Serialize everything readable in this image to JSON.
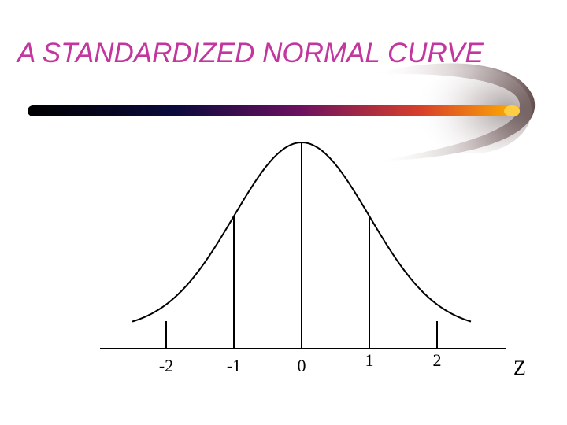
{
  "slide": {
    "title": "A STANDARDIZED NORMAL CURVE"
  },
  "colors": {
    "title": "#c2369e",
    "bar_start": "#000000",
    "bar_mid1": "#0b0a3c",
    "bar_mid2": "#6a1060",
    "bar_mid3": "#d8402a",
    "bar_end": "#ffb000",
    "curve": "#000000"
  },
  "decor": {
    "bar_icon": "gradient-bar-icon",
    "swoosh_icon": "comet-swoosh-icon"
  },
  "chart_data": {
    "type": "line",
    "x_range": [
      -2.5,
      2.5
    ],
    "ticks": [
      {
        "value": -2,
        "label": "-2",
        "marker": "short"
      },
      {
        "value": -1,
        "label": "-1",
        "marker": "long"
      },
      {
        "value": 0,
        "label": "0",
        "marker": "long"
      },
      {
        "value": 1,
        "label": "1",
        "marker": "long"
      },
      {
        "value": 2,
        "label": "2",
        "marker": "short"
      }
    ],
    "xlabel": "Z"
  }
}
